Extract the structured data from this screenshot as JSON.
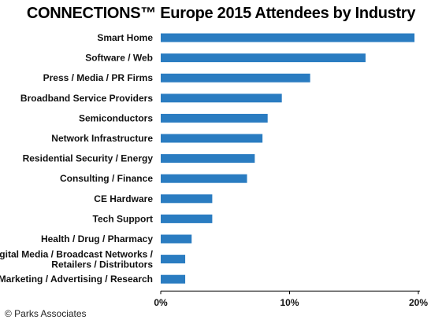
{
  "chart_data": {
    "type": "bar",
    "orientation": "horizontal",
    "title": "CONNECTIONS™ Europe 2015 Attendees by Industry",
    "xlabel": "",
    "ylabel": "",
    "categories": [
      "Smart Home",
      "Software / Web",
      "Press / Media / PR Firms",
      "Broadband Service Providers",
      "Semiconductors",
      "Network Infrastructure",
      "Residential Security / Energy",
      "Consulting / Finance",
      "CE Hardware",
      "Tech Support",
      "Health / Drug / Pharmacy",
      "Digital Media / Broadcast Networks / Retailers / Distributors",
      "Marketing / Advertising / Research"
    ],
    "values": [
      19.7,
      15.9,
      11.6,
      9.4,
      8.3,
      7.9,
      7.3,
      6.7,
      4.0,
      4.0,
      2.4,
      1.9,
      1.9
    ],
    "xlim": [
      0,
      20
    ],
    "ticks": [
      "0%",
      "10%",
      "20%"
    ],
    "tick_values": [
      0,
      10,
      20
    ],
    "grid": false,
    "bar_color": "#2a7cc1"
  },
  "footer": "© Parks Associates"
}
